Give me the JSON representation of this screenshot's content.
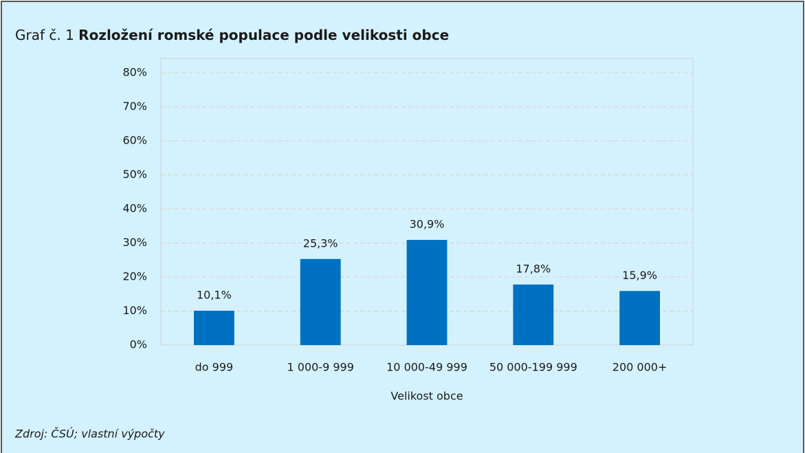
{
  "chart_data": {
    "type": "bar",
    "figure_label": "Graf č. 1",
    "title": "Rozložení romské populace podle velikosti obce",
    "x_label": "Velikost obce",
    "source": "Zdroj: ČSÚ; vlastní výpočty",
    "categories": [
      "do 999",
      "1 000-9 999",
      "10 000-49 999",
      "50 000-199 999",
      "200 000+"
    ],
    "values": [
      10.1,
      25.3,
      30.9,
      17.8,
      15.9
    ],
    "value_labels": [
      "10,1%",
      "25,3%",
      "30,9%",
      "17,8%",
      "15,9%"
    ],
    "color": "#0070c0",
    "ylim": [
      0,
      80
    ],
    "yticks": [
      {
        "value": 0,
        "label": "0%"
      },
      {
        "value": 10,
        "label": "10%"
      },
      {
        "value": 20,
        "label": "20%"
      },
      {
        "value": 30,
        "label": "30%"
      },
      {
        "value": 40,
        "label": "40%"
      },
      {
        "value": 50,
        "label": "50%"
      },
      {
        "value": 60,
        "label": "60%"
      },
      {
        "value": 70,
        "label": "70%"
      },
      {
        "value": 80,
        "label": "80%"
      }
    ],
    "grid": true
  }
}
